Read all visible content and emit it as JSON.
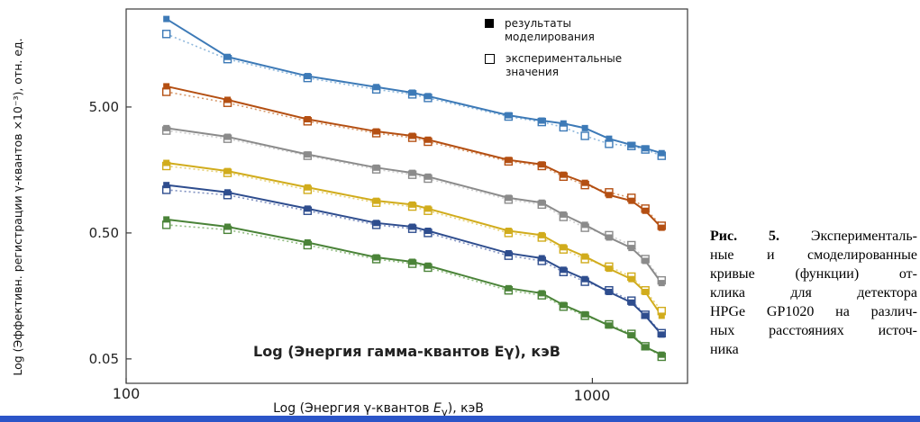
{
  "axes": {
    "y_label": "Log (Эффективн. регистрации γ-квантов ×10⁻³), отн. ед.",
    "x_label_prefix": "Log (Энергия γ-квантов ",
    "x_label_var": "E",
    "x_label_sub": "γ",
    "x_label_suffix": "), кэВ",
    "inner_x_label": "Log (Энергия гамма-квантов Eγ), кэВ",
    "y_tick_labels": [
      "5.00",
      "0.50",
      "0.05"
    ],
    "x_tick_labels": [
      "100",
      "1000"
    ]
  },
  "legend": {
    "model_label": "результаты моделирования",
    "experimental_label": "экспериментальные значения"
  },
  "caption": {
    "label": "Рис. 5.",
    "lines": [
      "Эксперименталь-",
      "ные и смоделированные",
      "кривые (функции) от-",
      "клика для детектора",
      "HPGe GP1020 на различ-",
      "ных расстояниях источ-",
      "ника"
    ]
  },
  "chart_data": {
    "type": "line",
    "title": "",
    "xlabel": "Log (Энергия γ-квантов Eγ), кэВ",
    "ylabel": "Log (Эффективн. регистрации γ-квантов ×10⁻³), отн. ед.",
    "x_scale": "log",
    "y_scale": "log",
    "xlim": [
      100,
      1600
    ],
    "ylim": [
      0.032,
      30
    ],
    "x_ticks": [
      100,
      1000
    ],
    "y_ticks": [
      5.0,
      0.5,
      0.05
    ],
    "grid": false,
    "legend_position": "top-right-inside",
    "marker_model": "filled-square",
    "marker_experimental": "open-square",
    "energies_keV": [
      122,
      165,
      245,
      344,
      411,
      444,
      661,
      779,
      867,
      964,
      1086,
      1213,
      1299,
      1408
    ],
    "series": [
      {
        "name": "curve-1",
        "color": "#3d7ab7",
        "light_color": "#8fb8dc",
        "model": [
          25,
          12.5,
          8.8,
          7.2,
          6.5,
          6.1,
          4.3,
          3.9,
          3.7,
          3.4,
          2.8,
          2.5,
          2.35,
          2.15
        ],
        "experimental": [
          19,
          12.0,
          8.5,
          6.9,
          6.3,
          5.9,
          4.2,
          3.8,
          3.45,
          2.95,
          2.55,
          2.45,
          2.3,
          2.05
        ]
      },
      {
        "name": "curve-2",
        "color": "#b44f12",
        "light_color": "#d89a6c",
        "model": [
          7.3,
          5.7,
          4.0,
          3.2,
          2.95,
          2.75,
          1.9,
          1.75,
          1.45,
          1.25,
          1.0,
          0.9,
          0.75,
          0.55
        ],
        "experimental": [
          6.6,
          5.4,
          3.85,
          3.1,
          2.85,
          2.65,
          1.85,
          1.7,
          1.4,
          1.2,
          1.05,
          0.95,
          0.78,
          0.57
        ]
      },
      {
        "name": "curve-3",
        "color": "#8b8b8b",
        "light_color": "#cfcfcf",
        "model": [
          3.4,
          2.9,
          2.1,
          1.65,
          1.5,
          1.4,
          0.95,
          0.87,
          0.7,
          0.58,
          0.46,
          0.38,
          0.3,
          0.2
        ],
        "experimental": [
          3.25,
          2.8,
          2.05,
          1.6,
          1.45,
          1.35,
          0.92,
          0.84,
          0.67,
          0.55,
          0.48,
          0.4,
          0.31,
          0.21
        ]
      },
      {
        "name": "curve-4",
        "color": "#d1ac1c",
        "light_color": "#e7d27a",
        "model": [
          1.8,
          1.55,
          1.15,
          0.9,
          0.84,
          0.78,
          0.52,
          0.48,
          0.385,
          0.325,
          0.26,
          0.215,
          0.17,
          0.11
        ],
        "experimental": [
          1.7,
          1.5,
          1.1,
          0.87,
          0.81,
          0.75,
          0.5,
          0.46,
          0.37,
          0.31,
          0.27,
          0.225,
          0.175,
          0.12
        ]
      },
      {
        "name": "curve-5",
        "color": "#2e4d8e",
        "light_color": "#8293c2",
        "model": [
          1.2,
          1.05,
          0.78,
          0.6,
          0.56,
          0.52,
          0.345,
          0.315,
          0.255,
          0.215,
          0.17,
          0.14,
          0.11,
          0.078
        ],
        "experimental": [
          1.1,
          1.0,
          0.75,
          0.58,
          0.54,
          0.5,
          0.33,
          0.3,
          0.245,
          0.205,
          0.175,
          0.145,
          0.112,
          0.08
        ]
      },
      {
        "name": "curve-6",
        "color": "#4a8338",
        "light_color": "#92bd82",
        "model": [
          0.64,
          0.56,
          0.42,
          0.32,
          0.295,
          0.275,
          0.182,
          0.166,
          0.134,
          0.113,
          0.092,
          0.077,
          0.062,
          0.054
        ],
        "experimental": [
          0.58,
          0.53,
          0.4,
          0.31,
          0.285,
          0.265,
          0.175,
          0.16,
          0.13,
          0.11,
          0.094,
          0.079,
          0.063,
          0.052
        ]
      }
    ]
  }
}
